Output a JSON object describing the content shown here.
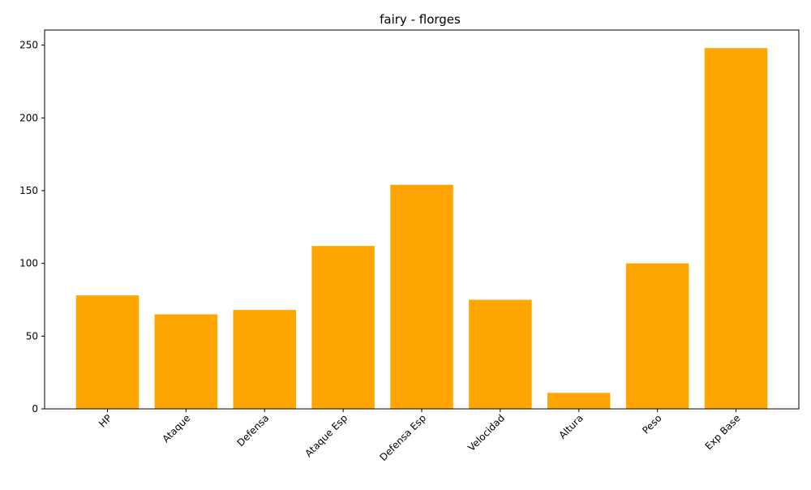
{
  "chart_data": {
    "type": "bar",
    "title": "fairy - florges",
    "xlabel": "",
    "ylabel": "",
    "categories": [
      "HP",
      "Ataque",
      "Defensa",
      "Ataque Esp",
      "Defensa Esp",
      "Velocidad",
      "Altura",
      "Peso",
      "Exp Base"
    ],
    "values": [
      78,
      65,
      68,
      112,
      154,
      75,
      11,
      100,
      248
    ],
    "ylim": [
      0,
      260.4
    ],
    "yticks": [
      0,
      50,
      100,
      150,
      200,
      250
    ],
    "bar_color": "#ffa500",
    "grid": false,
    "legend": "none"
  }
}
